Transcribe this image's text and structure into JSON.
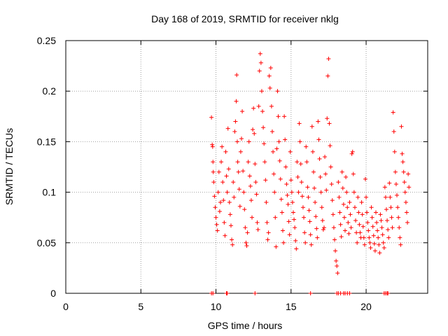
{
  "chart_data": {
    "type": "scatter",
    "title": "Day 168 of 2019, SRMTID for receiver nklg",
    "xlabel": "GPS time / hours",
    "ylabel": "SRMTID / TECUs",
    "xlim": [
      0,
      24.1
    ],
    "ylim": [
      0,
      0.25
    ],
    "xticks": [
      0,
      5,
      10,
      15,
      20
    ],
    "xtick_labels": [
      "0",
      "5",
      "10",
      "15",
      "20"
    ],
    "yticks": [
      0,
      0.05,
      0.1,
      0.15,
      0.2,
      0.25
    ],
    "ytick_labels": [
      "0",
      "0.05",
      "0.1",
      "0.15",
      "0.2",
      "0.25"
    ],
    "grid": true,
    "marker": "+",
    "color": "#ff0000",
    "series": [
      {
        "name": "SRMTID",
        "points": [
          [
            9.7,
            0.174
          ],
          [
            9.75,
            0.147
          ],
          [
            9.78,
            0.145
          ],
          [
            9.8,
            0.13
          ],
          [
            9.82,
            0.12
          ],
          [
            9.85,
            0.11
          ],
          [
            9.9,
            0.096
          ],
          [
            9.95,
            0.085
          ],
          [
            10.0,
            0.075
          ],
          [
            10.05,
            0.068
          ],
          [
            10.1,
            0.062
          ],
          [
            10.15,
            0.1
          ],
          [
            10.2,
            0.12
          ],
          [
            10.25,
            0.081
          ],
          [
            10.3,
            0.09
          ],
          [
            10.35,
            0.13
          ],
          [
            10.4,
            0.145
          ],
          [
            10.45,
            0.11
          ],
          [
            10.5,
            0.092
          ],
          [
            10.55,
            0.07
          ],
          [
            10.6,
            0.057
          ],
          [
            10.65,
            0.14
          ],
          [
            10.7,
            0.116
          ],
          [
            10.75,
            0.1
          ],
          [
            10.8,
            0.163
          ],
          [
            10.85,
            0.123
          ],
          [
            10.9,
            0.09
          ],
          [
            10.95,
            0.078
          ],
          [
            11.0,
            0.067
          ],
          [
            11.05,
            0.053
          ],
          [
            11.1,
            0.048
          ],
          [
            11.15,
            0.11
          ],
          [
            11.2,
            0.095
          ],
          [
            11.25,
            0.16
          ],
          [
            11.3,
            0.17
          ],
          [
            11.35,
            0.19
          ],
          [
            11.38,
            0.216
          ],
          [
            11.42,
            0.15
          ],
          [
            11.45,
            0.13
          ],
          [
            11.5,
            0.12
          ],
          [
            11.55,
            0.103
          ],
          [
            11.6,
            0.086
          ],
          [
            11.65,
            0.14
          ],
          [
            11.7,
            0.153
          ],
          [
            11.75,
            0.18
          ],
          [
            11.8,
            0.121
          ],
          [
            11.85,
            0.1
          ],
          [
            11.9,
            0.083
          ],
          [
            11.95,
            0.065
          ],
          [
            12.0,
            0.05
          ],
          [
            12.05,
            0.047
          ],
          [
            12.1,
            0.06
          ],
          [
            12.15,
            0.13
          ],
          [
            12.2,
            0.15
          ],
          [
            12.25,
            0.116
          ],
          [
            12.3,
            0.106
          ],
          [
            12.35,
            0.092
          ],
          [
            12.4,
            0.075
          ],
          [
            12.45,
            0.162
          ],
          [
            12.5,
            0.183
          ],
          [
            12.55,
            0.158
          ],
          [
            12.6,
            0.128
          ],
          [
            12.65,
            0.11
          ],
          [
            12.7,
            0.098
          ],
          [
            12.75,
            0.07
          ],
          [
            12.8,
            0.063
          ],
          [
            12.85,
            0.185
          ],
          [
            12.9,
            0.22
          ],
          [
            12.95,
            0.237
          ],
          [
            13.0,
            0.228
          ],
          [
            13.05,
            0.2
          ],
          [
            13.1,
            0.18
          ],
          [
            13.15,
            0.164
          ],
          [
            13.2,
            0.148
          ],
          [
            13.25,
            0.13
          ],
          [
            13.3,
            0.112
          ],
          [
            13.35,
            0.09
          ],
          [
            13.4,
            0.07
          ],
          [
            13.45,
            0.053
          ],
          [
            13.5,
            0.06
          ],
          [
            13.55,
            0.215
          ],
          [
            13.6,
            0.203
          ],
          [
            13.65,
            0.223
          ],
          [
            13.7,
            0.185
          ],
          [
            13.75,
            0.16
          ],
          [
            13.8,
            0.14
          ],
          [
            13.85,
            0.118
          ],
          [
            13.9,
            0.1
          ],
          [
            13.95,
            0.075
          ],
          [
            14.0,
            0.046
          ],
          [
            14.05,
            0.143
          ],
          [
            14.1,
            0.2
          ],
          [
            14.15,
            0.175
          ],
          [
            14.2,
            0.15
          ],
          [
            14.25,
            0.131
          ],
          [
            14.3,
            0.113
          ],
          [
            14.35,
            0.093
          ],
          [
            14.4,
            0.08
          ],
          [
            14.45,
            0.062
          ],
          [
            14.5,
            0.05
          ],
          [
            14.55,
            0.175
          ],
          [
            14.6,
            0.152
          ],
          [
            14.65,
            0.125
          ],
          [
            14.7,
            0.108
          ],
          [
            14.75,
            0.097
          ],
          [
            14.8,
            0.088
          ],
          [
            14.85,
            0.071
          ],
          [
            14.9,
            0.058
          ],
          [
            14.95,
            0.14
          ],
          [
            15.0,
            0.112
          ],
          [
            15.05,
            0.1
          ],
          [
            15.1,
            0.09
          ],
          [
            15.15,
            0.08
          ],
          [
            15.2,
            0.073
          ],
          [
            15.25,
            0.065
          ],
          [
            15.3,
            0.052
          ],
          [
            15.35,
            0.044
          ],
          [
            15.4,
            0.13
          ],
          [
            15.45,
            0.115
          ],
          [
            15.5,
            0.1
          ],
          [
            15.55,
            0.168
          ],
          [
            15.6,
            0.15
          ],
          [
            15.65,
            0.128
          ],
          [
            15.7,
            0.11
          ],
          [
            15.75,
            0.096
          ],
          [
            15.8,
            0.085
          ],
          [
            15.85,
            0.075
          ],
          [
            15.9,
            0.06
          ],
          [
            15.95,
            0.05
          ],
          [
            16.0,
            0.145
          ],
          [
            16.05,
            0.13
          ],
          [
            16.1,
            0.105
          ],
          [
            16.15,
            0.095
          ],
          [
            16.2,
            0.082
          ],
          [
            16.25,
            0.071
          ],
          [
            16.3,
            0.058
          ],
          [
            16.35,
            0.048
          ],
          [
            16.4,
            0.165
          ],
          [
            16.45,
            0.14
          ],
          [
            16.5,
            0.12
          ],
          [
            16.55,
            0.104
          ],
          [
            16.6,
            0.09
          ],
          [
            16.65,
            0.076
          ],
          [
            16.7,
            0.064
          ],
          [
            16.75,
            0.055
          ],
          [
            16.8,
            0.17
          ],
          [
            16.85,
            0.152
          ],
          [
            16.9,
            0.133
          ],
          [
            16.95,
            0.115
          ],
          [
            17.0,
            0.1
          ],
          [
            17.05,
            0.085
          ],
          [
            17.1,
            0.072
          ],
          [
            17.15,
            0.063
          ],
          [
            17.2,
            0.065
          ],
          [
            17.25,
            0.135
          ],
          [
            17.3,
            0.118
          ],
          [
            17.35,
            0.102
          ],
          [
            17.4,
            0.173
          ],
          [
            17.45,
            0.215
          ],
          [
            17.5,
            0.232
          ],
          [
            17.55,
            0.168
          ],
          [
            17.6,
            0.146
          ],
          [
            17.65,
            0.125
          ],
          [
            17.7,
            0.108
          ],
          [
            17.75,
            0.092
          ],
          [
            17.8,
            0.078
          ],
          [
            17.85,
            0.065
          ],
          [
            17.9,
            0.053
          ],
          [
            17.95,
            0.042
          ],
          [
            18.0,
            0.032
          ],
          [
            18.05,
            0.027
          ],
          [
            18.1,
            0.02
          ],
          [
            18.15,
            0.11
          ],
          [
            18.2,
            0.095
          ],
          [
            18.25,
            0.08
          ],
          [
            18.3,
            0.068
          ],
          [
            18.35,
            0.056
          ],
          [
            18.4,
            0.12
          ],
          [
            18.45,
            0.104
          ],
          [
            18.5,
            0.088
          ],
          [
            18.55,
            0.075
          ],
          [
            18.6,
            0.062
          ],
          [
            18.65,
            0.115
          ],
          [
            18.7,
            0.1
          ],
          [
            18.75,
            0.085
          ],
          [
            18.8,
            0.07
          ],
          [
            18.85,
            0.059
          ],
          [
            18.9,
            0.09
          ],
          [
            18.95,
            0.078
          ],
          [
            19.0,
            0.065
          ],
          [
            19.05,
            0.138
          ],
          [
            19.1,
            0.14
          ],
          [
            19.15,
            0.118
          ],
          [
            19.2,
            0.1
          ],
          [
            19.25,
            0.085
          ],
          [
            19.3,
            0.072
          ],
          [
            19.35,
            0.06
          ],
          [
            19.4,
            0.05
          ],
          [
            19.45,
            0.095
          ],
          [
            19.5,
            0.08
          ],
          [
            19.55,
            0.068
          ],
          [
            19.6,
            0.06
          ],
          [
            19.65,
            0.055
          ],
          [
            19.7,
            0.09
          ],
          [
            19.75,
            0.078
          ],
          [
            19.8,
            0.066
          ],
          [
            19.85,
            0.055
          ],
          [
            19.9,
            0.048
          ],
          [
            19.95,
            0.113
          ],
          [
            20.0,
            0.095
          ],
          [
            20.05,
            0.08
          ],
          [
            20.1,
            0.07
          ],
          [
            20.15,
            0.062
          ],
          [
            20.2,
            0.055
          ],
          [
            20.25,
            0.05
          ],
          [
            20.3,
            0.045
          ],
          [
            20.35,
            0.085
          ],
          [
            20.4,
            0.075
          ],
          [
            20.45,
            0.066
          ],
          [
            20.5,
            0.057
          ],
          [
            20.55,
            0.049
          ],
          [
            20.6,
            0.042
          ],
          [
            20.65,
            0.08
          ],
          [
            20.7,
            0.07
          ],
          [
            20.75,
            0.062
          ],
          [
            20.8,
            0.055
          ],
          [
            20.85,
            0.048
          ],
          [
            20.9,
            0.04
          ],
          [
            20.95,
            0.078
          ],
          [
            21.0,
            0.072
          ],
          [
            21.05,
            0.065
          ],
          [
            21.1,
            0.058
          ],
          [
            21.15,
            0.05
          ],
          [
            21.2,
            0.045
          ],
          [
            21.25,
            0.105
          ],
          [
            21.3,
            0.095
          ],
          [
            21.35,
            0.083
          ],
          [
            21.4,
            0.072
          ],
          [
            21.45,
            0.063
          ],
          [
            21.5,
            0.055
          ],
          [
            21.55,
            0.109
          ],
          [
            21.6,
            0.095
          ],
          [
            21.65,
            0.085
          ],
          [
            21.7,
            0.075
          ],
          [
            21.75,
            0.065
          ],
          [
            21.8,
            0.179
          ],
          [
            21.85,
            0.16
          ],
          [
            21.9,
            0.14
          ],
          [
            21.95,
            0.12
          ],
          [
            22.0,
            0.108
          ],
          [
            22.05,
            0.097
          ],
          [
            22.1,
            0.085
          ],
          [
            22.15,
            0.075
          ],
          [
            22.2,
            0.065
          ],
          [
            22.25,
            0.055
          ],
          [
            22.3,
            0.048
          ],
          [
            22.35,
            0.165
          ],
          [
            22.4,
            0.138
          ],
          [
            22.45,
            0.13
          ],
          [
            22.5,
            0.12
          ],
          [
            22.55,
            0.11
          ],
          [
            22.6,
            0.1
          ],
          [
            22.65,
            0.09
          ],
          [
            22.7,
            0.08
          ],
          [
            22.75,
            0.07
          ],
          [
            22.8,
            0.118
          ],
          [
            22.85,
            0.105
          ]
        ]
      }
    ],
    "baseline_zero_times": [
      9.7,
      9.8,
      10.7,
      10.75,
      12.6,
      16.3,
      18.05,
      18.15,
      18.3,
      18.5,
      18.6,
      18.75,
      18.9,
      21.2,
      21.3,
      21.4,
      21.45
    ]
  }
}
